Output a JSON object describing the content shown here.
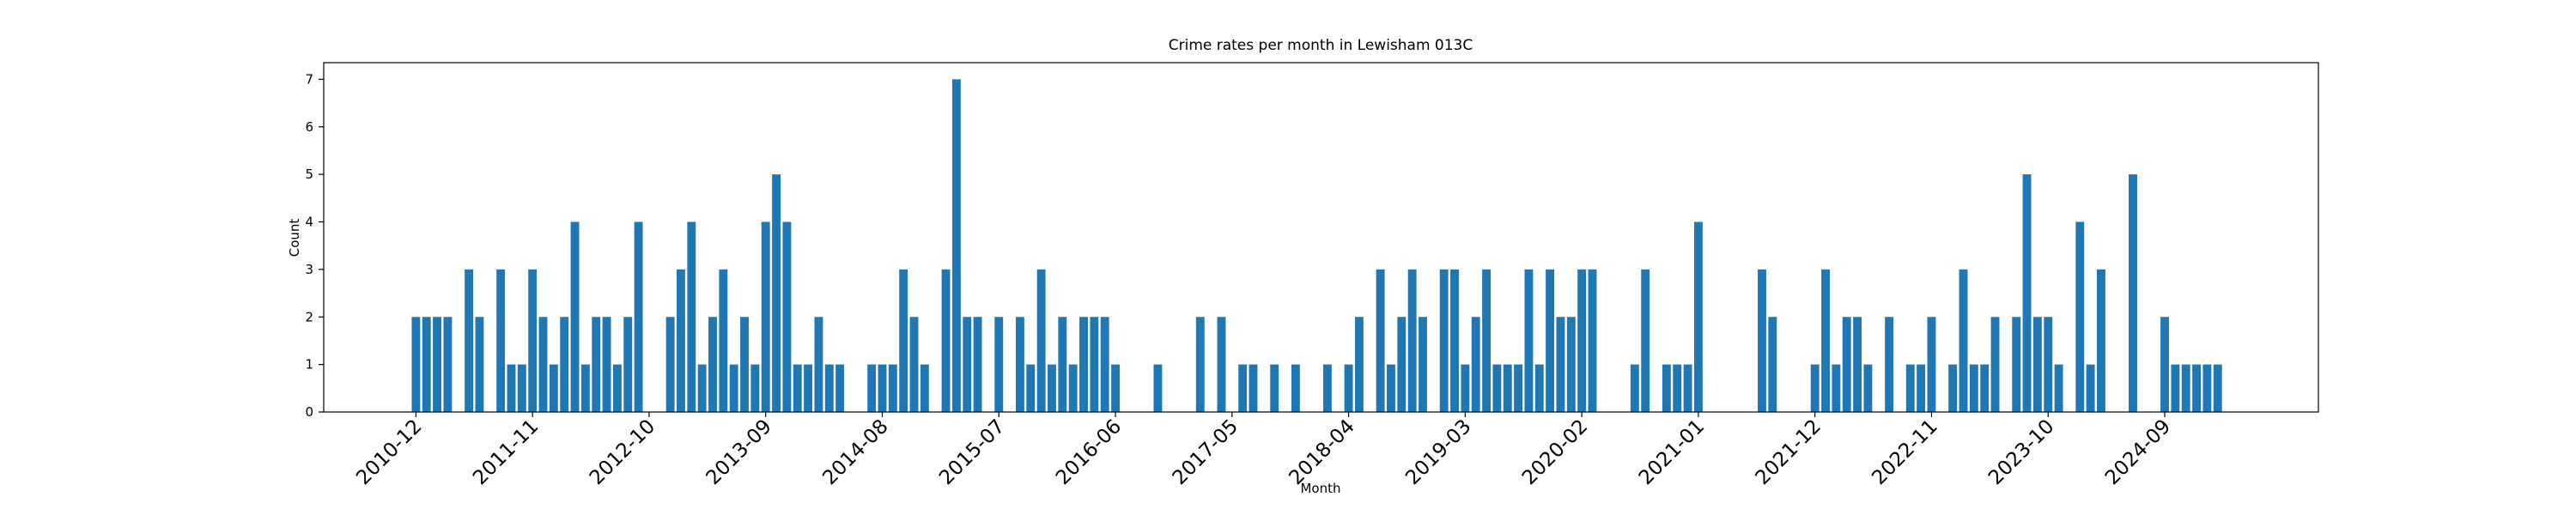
{
  "chart_data": {
    "type": "bar",
    "title": "Crime rates per month in Lewisham 013C",
    "xlabel": "Month",
    "ylabel": "Count",
    "color": "#1f77b4",
    "categories": [
      "2010-12",
      null,
      null,
      null,
      null,
      null,
      null,
      null,
      null,
      null,
      null,
      "2011-11",
      null,
      null,
      null,
      null,
      null,
      null,
      null,
      null,
      null,
      null,
      "2012-10",
      null,
      null,
      null,
      null,
      null,
      null,
      null,
      null,
      null,
      null,
      "2013-09",
      null,
      null,
      null,
      null,
      null,
      null,
      null,
      null,
      null,
      null,
      "2014-08",
      null,
      null,
      null,
      null,
      null,
      null,
      null,
      null,
      null,
      null,
      "2015-07",
      null,
      null,
      null,
      null,
      null,
      null,
      null,
      null,
      null,
      null,
      "2016-06",
      null,
      null,
      null,
      null,
      null,
      null,
      null,
      null,
      null,
      null,
      "2017-05",
      null,
      null,
      null,
      null,
      null,
      null,
      null,
      null,
      null,
      null,
      "2018-04",
      null,
      null,
      null,
      null,
      null,
      null,
      null,
      null,
      null,
      null,
      "2019-03",
      null,
      null,
      null,
      null,
      null,
      null,
      null,
      null,
      null,
      null,
      "2020-02",
      null,
      null,
      null,
      null,
      null,
      null,
      null,
      null,
      null,
      null,
      "2021-01",
      null,
      null,
      null,
      null,
      null,
      null,
      null,
      null,
      null,
      null,
      "2021-12",
      null,
      null,
      null,
      null,
      null,
      null,
      null,
      null,
      null,
      null,
      "2022-11",
      null,
      null,
      null,
      null,
      null,
      null,
      null,
      null,
      null,
      null,
      "2023-10",
      null,
      null,
      null,
      null,
      null,
      null,
      null,
      null,
      null,
      null,
      "2024-09",
      null,
      null,
      null,
      null,
      null
    ],
    "values": [
      2,
      2,
      2,
      2,
      0,
      3,
      2,
      0,
      3,
      1,
      1,
      3,
      2,
      1,
      2,
      4,
      1,
      2,
      2,
      1,
      2,
      4,
      0,
      0,
      2,
      3,
      4,
      1,
      2,
      3,
      1,
      2,
      1,
      4,
      5,
      4,
      1,
      1,
      2,
      1,
      1,
      0,
      0,
      1,
      1,
      1,
      3,
      2,
      1,
      0,
      3,
      7,
      2,
      2,
      0,
      2,
      0,
      2,
      1,
      3,
      1,
      2,
      1,
      2,
      2,
      2,
      1,
      0,
      0,
      0,
      1,
      0,
      0,
      0,
      2,
      0,
      2,
      0,
      1,
      1,
      0,
      1,
      0,
      1,
      0,
      0,
      1,
      0,
      1,
      2,
      0,
      3,
      1,
      2,
      3,
      2,
      0,
      3,
      3,
      1,
      2,
      3,
      1,
      1,
      1,
      3,
      1,
      3,
      2,
      2,
      3,
      3,
      0,
      0,
      0,
      1,
      3,
      0,
      1,
      1,
      1,
      4,
      0,
      0,
      0,
      0,
      0,
      3,
      2,
      0,
      0,
      0,
      1,
      3,
      1,
      2,
      2,
      1,
      0,
      2,
      0,
      1,
      1,
      2,
      0,
      1,
      3,
      1,
      1,
      2,
      0,
      2,
      5,
      2,
      2,
      1,
      0,
      4,
      1,
      3,
      0,
      0,
      5,
      0,
      0,
      2,
      1,
      1,
      1,
      1,
      1
    ],
    "ylim": [
      0,
      7.35
    ],
    "yticks": [
      0,
      1,
      2,
      3,
      4,
      5,
      6,
      7
    ]
  }
}
